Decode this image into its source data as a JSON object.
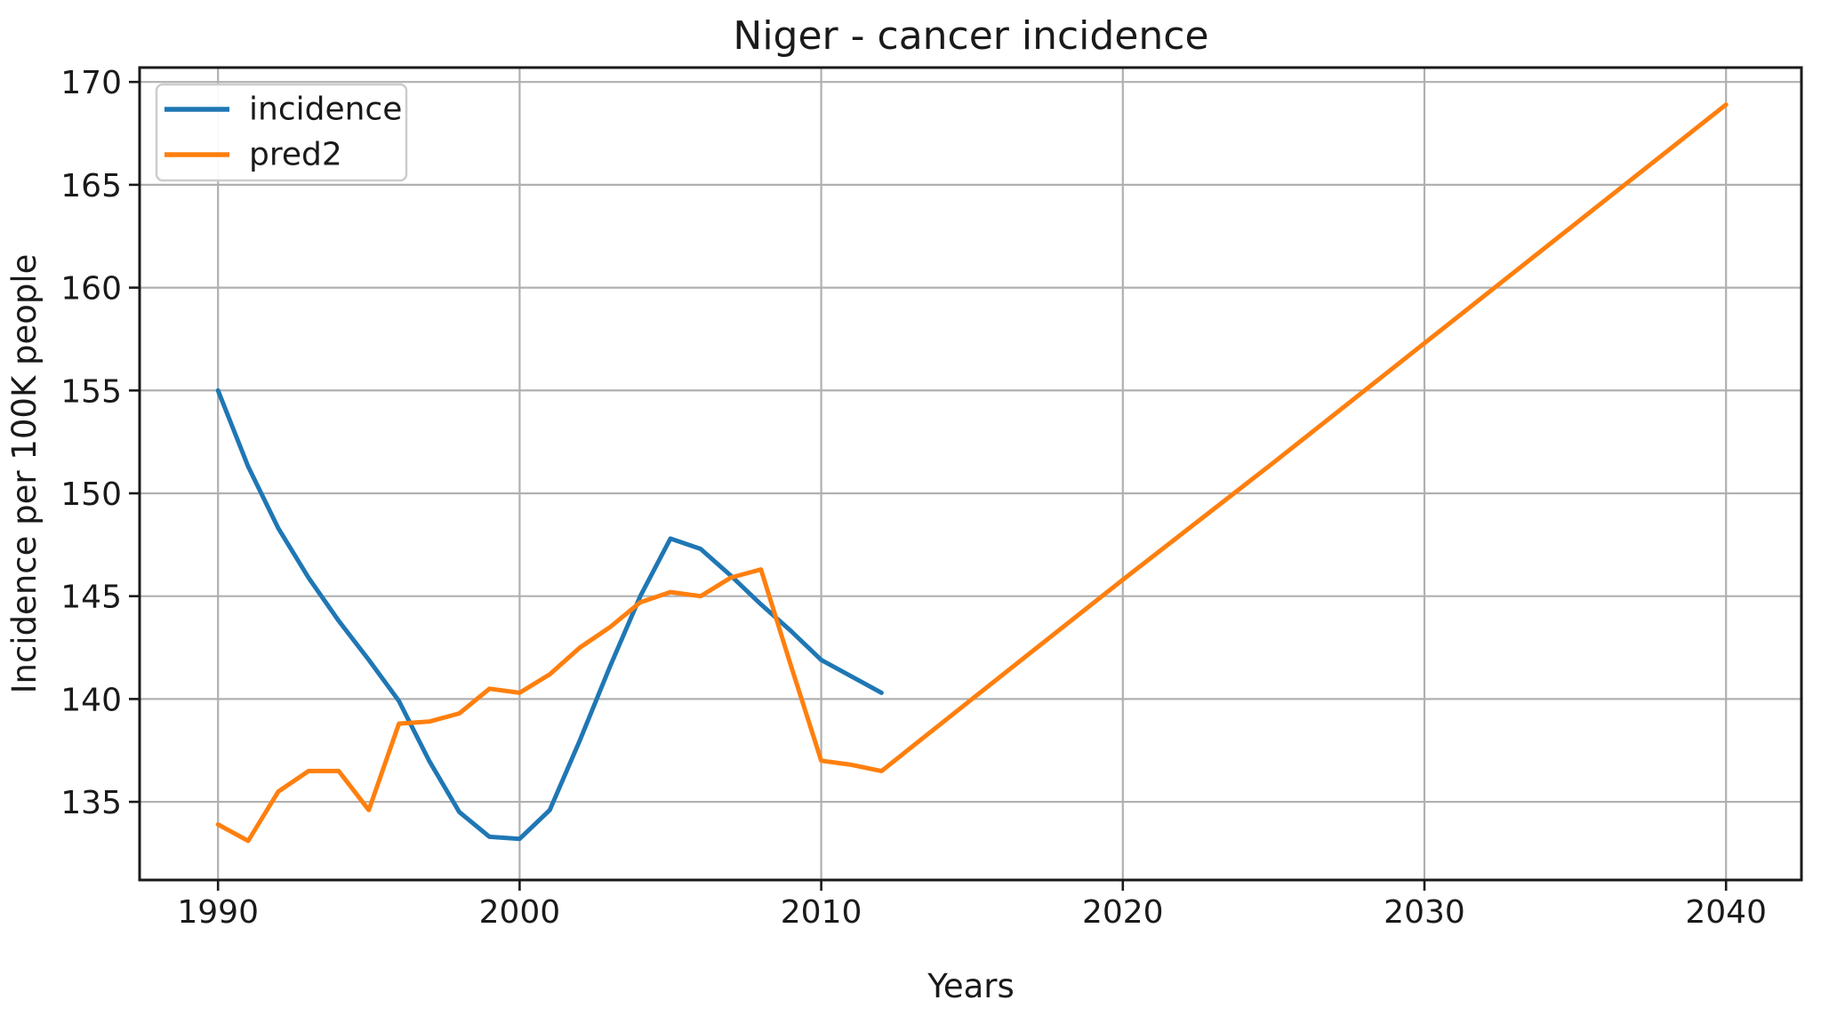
{
  "chart_data": {
    "type": "line",
    "title": "Niger - cancer incidence",
    "xlabel": "Years",
    "ylabel": "Incidence per 100K people",
    "grid": true,
    "legend_position": "upper left",
    "xlim": [
      1987.4,
      2042.5
    ],
    "ylim": [
      131.2,
      170.7
    ],
    "xticks": [
      1990,
      2000,
      2010,
      2020,
      2030,
      2040
    ],
    "yticks": [
      135,
      140,
      145,
      150,
      155,
      160,
      165,
      170
    ],
    "grid_color": "#b0b0b0",
    "axis_color": "#1a1a1a",
    "background_color": "#ffffff",
    "series": [
      {
        "name": "incidence",
        "color": "#1f77b4",
        "x": [
          1990,
          1991,
          1992,
          1993,
          1994,
          1995,
          1996,
          1997,
          1998,
          1999,
          2000,
          2001,
          2002,
          2003,
          2004,
          2005,
          2006,
          2007,
          2008,
          2009,
          2010,
          2011,
          2012
        ],
        "y": [
          155.0,
          151.3,
          148.3,
          145.9,
          143.8,
          141.9,
          139.9,
          137.0,
          134.5,
          133.3,
          133.2,
          134.6,
          138.0,
          141.6,
          145.0,
          147.8,
          147.3,
          146.0,
          144.6,
          143.3,
          141.9,
          141.1,
          140.3
        ]
      },
      {
        "name": "pred2",
        "color": "#ff7f0e",
        "x": [
          1990,
          1991,
          1992,
          1993,
          1994,
          1995,
          1996,
          1997,
          1998,
          1999,
          2000,
          2001,
          2002,
          2003,
          2004,
          2005,
          2006,
          2007,
          2008,
          2009,
          2010,
          2011,
          2012,
          2015,
          2020,
          2025,
          2030,
          2035,
          2040
        ],
        "y": [
          133.9,
          133.1,
          135.5,
          136.5,
          136.5,
          134.6,
          138.8,
          138.9,
          139.3,
          140.5,
          140.3,
          141.2,
          142.5,
          143.5,
          144.7,
          145.2,
          145.0,
          145.9,
          146.3,
          141.6,
          137.0,
          136.8,
          136.5,
          140.0,
          145.8,
          151.5,
          157.3,
          163.1,
          168.9
        ]
      }
    ]
  }
}
